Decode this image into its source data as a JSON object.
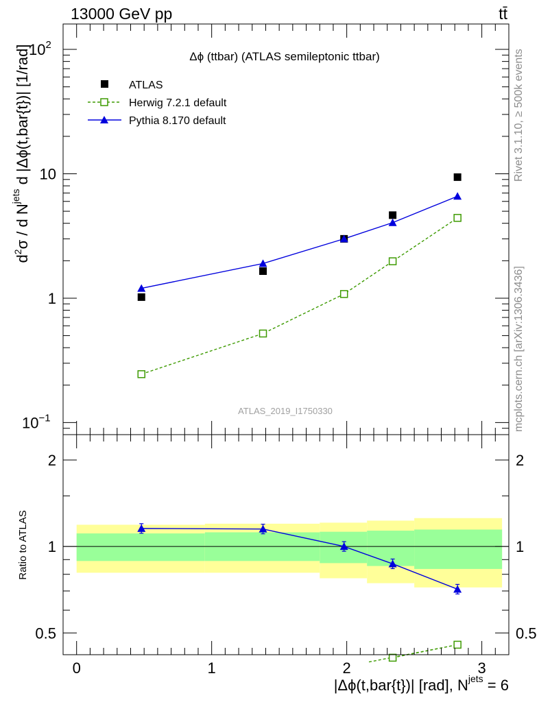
{
  "header": {
    "left": "13000 GeV pp",
    "right": "tt̄"
  },
  "side_labels": {
    "rivet": "Rivet 3.1.10, ≥ 500k events",
    "mcplots": "mcplots.cern.ch [arXiv:1306.3436]"
  },
  "colors": {
    "atlas": "#000000",
    "herwig": "#3d9a00",
    "pythia": "#0000dd",
    "band_inner": "#99ff99",
    "band_outer": "#ffff99"
  },
  "chart_data": [
    {
      "type": "scatter",
      "title": "Δϕ (ttbar) (ATLAS semileptonic ttbar)",
      "ylabel": "d²σ / d N^jets d |Δϕ(t,bar{t})| [1/rad]",
      "ylabel_parts": {
        "d": "d",
        "two": "2",
        "sigma": "σ",
        "slash": " /  d N",
        "jets": "jets",
        "rest": " d |Δϕ(t,bar{t})| [1/rad]"
      },
      "yscale": "log",
      "ylim": [
        0.08,
        160
      ],
      "xlim": [
        -0.1,
        3.2
      ],
      "yticks": [
        {
          "v": 0.1,
          "label": "10",
          "exp": "−1"
        },
        {
          "v": 1,
          "label": "1",
          "exp": ""
        },
        {
          "v": 10,
          "label": "10",
          "exp": ""
        },
        {
          "v": 100,
          "label": "10",
          "exp": "2"
        }
      ],
      "watermark": "ATLAS_2019_I1750330",
      "series": [
        {
          "name": "ATLAS",
          "style": "square",
          "x": [
            0.48,
            1.38,
            1.98,
            2.34,
            2.82
          ],
          "y": [
            1.02,
            1.65,
            3.0,
            4.65,
            9.4
          ]
        },
        {
          "name": "Herwig 7.2.1 default",
          "style": "open-square-dashed",
          "x": [
            0.48,
            1.38,
            1.98,
            2.34,
            2.82
          ],
          "y": [
            0.245,
            0.52,
            1.08,
            1.98,
            4.42
          ]
        },
        {
          "name": "Pythia 8.170 default",
          "style": "triangle-line",
          "x": [
            0.48,
            1.38,
            1.98,
            2.34,
            2.82
          ],
          "y": [
            1.2,
            1.9,
            3.0,
            4.05,
            6.6
          ]
        }
      ]
    },
    {
      "type": "line",
      "ylabel": "Ratio to ATLAS",
      "xlabel": "|Δϕ(t,bar{t})| [rad], N",
      "xlabel_sup": "jets",
      "xlabel_end": " = 6",
      "yscale": "log",
      "ylim": [
        0.42,
        2.45
      ],
      "xlim": [
        -0.1,
        3.2
      ],
      "xticks": [
        "0",
        "1",
        "2",
        "3"
      ],
      "yticks": [
        "0.5",
        "1",
        "2"
      ],
      "bands": {
        "edges": [
          0.0,
          0.95,
          1.8,
          2.15,
          2.5,
          3.15
        ],
        "inner_lo": [
          0.89,
          0.89,
          0.875,
          0.855,
          0.835
        ],
        "inner_hi": [
          1.11,
          1.12,
          1.125,
          1.135,
          1.145
        ],
        "outer_lo": [
          0.81,
          0.81,
          0.775,
          0.745,
          0.72
        ],
        "outer_hi": [
          1.19,
          1.2,
          1.21,
          1.23,
          1.255
        ]
      },
      "series": [
        {
          "name": "Herwig 7.2.1 default",
          "x": [
            2.34,
            2.82
          ],
          "y": [
            0.41,
            0.455
          ]
        },
        {
          "name": "Pythia 8.170 default",
          "x": [
            0.48,
            1.38,
            1.98,
            2.34,
            2.82
          ],
          "y": [
            1.155,
            1.15,
            1.0,
            0.87,
            0.71
          ]
        }
      ]
    }
  ]
}
